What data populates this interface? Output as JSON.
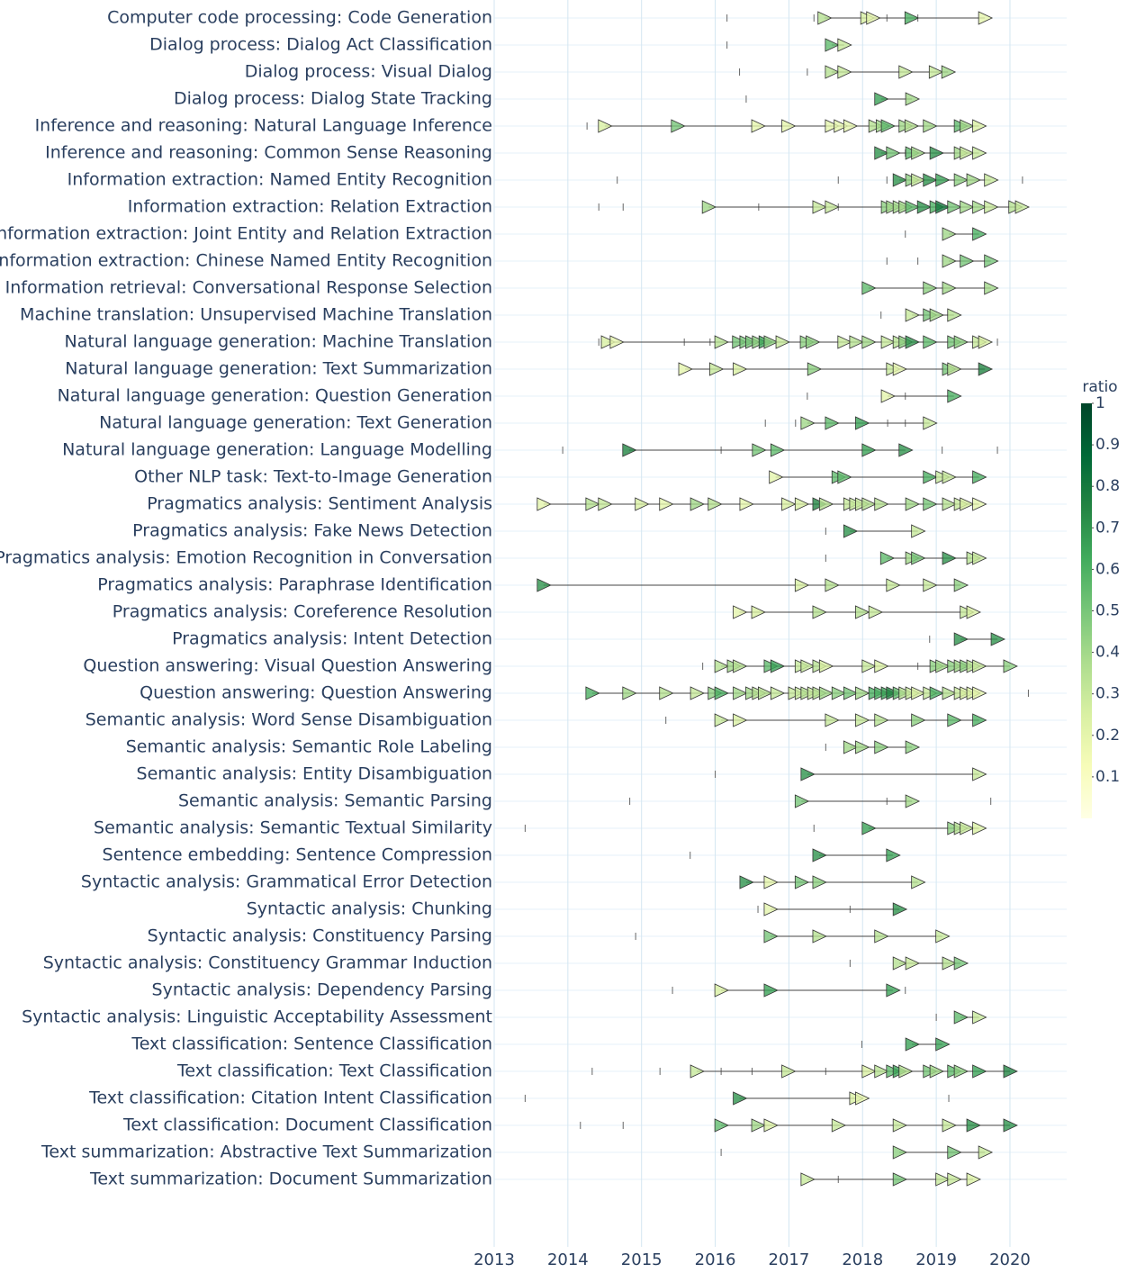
{
  "chart_data": {
    "type": "timeline",
    "xlim": [
      2013,
      2020.77
    ],
    "xticks": [
      2013,
      2014,
      2015,
      2016,
      2017,
      2018,
      2019,
      2020
    ],
    "colorbar": {
      "title": "ratio",
      "lim": [
        0,
        1
      ],
      "ticks": [
        0.1,
        0.2,
        0.3,
        0.4,
        0.5,
        0.6,
        0.7,
        0.8,
        0.9,
        1
      ],
      "colorscale": [
        [
          0,
          "#ffffe5"
        ],
        [
          0.125,
          "#f7fcb9"
        ],
        [
          0.25,
          "#d9f0a3"
        ],
        [
          0.375,
          "#addd8e"
        ],
        [
          0.5,
          "#78c679"
        ],
        [
          0.625,
          "#41ab5d"
        ],
        [
          0.75,
          "#238443"
        ],
        [
          0.875,
          "#006837"
        ],
        [
          1,
          "#004529"
        ]
      ]
    },
    "categories": [
      "Computer code processing: Code Generation",
      "Dialog process: Dialog Act Classification",
      "Dialog process: Visual Dialog",
      "Dialog process: Dialog State Tracking",
      "Inference and reasoning: Natural Language Inference",
      "Inference and reasoning: Common Sense Reasoning",
      "Information extraction: Named Entity Recognition",
      "Information extraction: Relation Extraction",
      "Information extraction: Joint Entity and Relation Extraction",
      "Information extraction: Chinese Named Entity Recognition",
      "Information retrieval: Conversational Response Selection",
      "Machine translation: Unsupervised Machine Translation",
      "Natural language generation: Machine Translation",
      "Natural language generation: Text Summarization",
      "Natural language generation: Question Generation",
      "Natural language generation: Text Generation",
      "Natural language generation: Language Modelling",
      "Other NLP task: Text-to-Image Generation",
      "Pragmatics analysis: Sentiment Analysis",
      "Pragmatics analysis: Fake News Detection",
      "Pragmatics analysis: Emotion Recognition in Conversation",
      "Pragmatics analysis: Paraphrase Identification",
      "Pragmatics analysis: Coreference Resolution",
      "Pragmatics analysis: Intent Detection",
      "Question answering: Visual Question Answering",
      "Question answering: Question Answering",
      "Semantic analysis: Word Sense Disambiguation",
      "Semantic analysis: Semantic Role Labeling",
      "Semantic analysis: Entity Disambiguation",
      "Semantic analysis: Semantic Parsing",
      "Semantic analysis: Semantic Textual Similarity",
      "Sentence embedding: Sentence Compression",
      "Syntactic analysis: Grammatical Error Detection",
      "Syntactic analysis: Chunking",
      "Syntactic analysis: Constituency Parsing",
      "Syntactic analysis: Constituency Grammar Induction",
      "Syntactic analysis: Dependency Parsing",
      "Syntactic analysis: Linguistic Acceptability Assessment",
      "Text classification: Sentence Classification",
      "Text classification: Text Classification",
      "Text classification: Citation Intent Classification",
      "Text classification: Document Classification",
      "Text summarization: Abstractive Text Summarization",
      "Text summarization: Document Summarization"
    ],
    "rows": [
      {
        "x": [
          2017.48,
          2018.06,
          2018.14,
          2018.66,
          2019.66
        ],
        "ratio": [
          0.35,
          0.25,
          0.2,
          0.6,
          0.2
        ],
        "other_x": [
          2016.16,
          2017.34,
          2018.33,
          2018.75
        ]
      },
      {
        "x": [
          2017.58,
          2017.75
        ],
        "ratio": [
          0.55,
          0.3
        ],
        "other_x": [
          2016.16
        ]
      },
      {
        "x": [
          2017.58,
          2017.75,
          2018.58,
          2018.99,
          2019.16
        ],
        "ratio": [
          0.35,
          0.3,
          0.3,
          0.3,
          0.4
        ],
        "other_x": [
          2016.33,
          2017.25
        ]
      },
      {
        "x": [
          2018.25,
          2018.67
        ],
        "ratio": [
          0.65,
          0.4
        ],
        "other_x": [
          2016.42
        ]
      },
      {
        "x": [
          2014.5,
          2015.49,
          2016.58,
          2016.99,
          2017.58,
          2017.7,
          2017.83,
          2018.17,
          2018.27,
          2018.34,
          2018.58,
          2018.66,
          2018.91,
          2019.33,
          2019.41,
          2019.58
        ],
        "ratio": [
          0.25,
          0.5,
          0.2,
          0.2,
          0.2,
          0.2,
          0.2,
          0.35,
          0.4,
          0.55,
          0.4,
          0.35,
          0.4,
          0.55,
          0.4,
          0.25
        ],
        "other_x": [
          2014.26
        ]
      },
      {
        "x": [
          2018.25,
          2018.41,
          2018.67,
          2018.75,
          2019.0,
          2019.33,
          2019.41,
          2019.58
        ],
        "ratio": [
          0.7,
          0.5,
          0.55,
          0.4,
          0.7,
          0.4,
          0.3,
          0.3
        ],
        "other_x": [
          2018.58
        ]
      },
      {
        "x": [
          2018.5,
          2018.67,
          2018.75,
          2018.91,
          2019.08,
          2019.33,
          2019.5,
          2019.74
        ],
        "ratio": [
          0.7,
          0.45,
          0.3,
          0.7,
          0.65,
          0.45,
          0.4,
          0.3
        ],
        "other_x": [
          2014.67,
          2017.67,
          2018.33,
          2020.17
        ]
      },
      {
        "x": [
          2015.91,
          2017.41,
          2017.58,
          2018.34,
          2018.41,
          2018.5,
          2018.58,
          2018.67,
          2018.83,
          2019.0,
          2019.08,
          2019.24,
          2019.41,
          2019.58,
          2019.74,
          2020.07,
          2020.16
        ],
        "ratio": [
          0.4,
          0.3,
          0.3,
          0.45,
          0.4,
          0.4,
          0.4,
          0.55,
          0.7,
          0.6,
          0.8,
          0.5,
          0.4,
          0.4,
          0.3,
          0.35,
          0.3
        ],
        "other_x": [
          2014.42,
          2014.75,
          2016.59,
          2017.67
        ]
      },
      {
        "x": [
          2019.17,
          2019.58
        ],
        "ratio": [
          0.4,
          0.6
        ],
        "other_x": [
          2018.58
        ]
      },
      {
        "x": [
          2019.17,
          2019.41,
          2019.74
        ],
        "ratio": [
          0.4,
          0.5,
          0.5
        ],
        "other_x": [
          2018.33,
          2018.75
        ]
      },
      {
        "x": [
          2018.08,
          2018.91,
          2019.17,
          2019.74
        ],
        "ratio": [
          0.55,
          0.45,
          0.4,
          0.4
        ],
        "other_x": []
      },
      {
        "x": [
          2018.67,
          2018.91,
          2019.0,
          2019.24
        ],
        "ratio": [
          0.3,
          0.5,
          0.4,
          0.35
        ],
        "other_x": [
          2018.25
        ]
      },
      {
        "x": [
          2014.54,
          2014.66,
          2016.08,
          2016.32,
          2016.42,
          2016.5,
          2016.59,
          2016.68,
          2016.75,
          2016.91,
          2017.24,
          2017.32,
          2017.75,
          2017.91,
          2018.08,
          2018.34,
          2018.5,
          2018.58,
          2018.67,
          2018.91,
          2019.24,
          2019.33,
          2019.58,
          2019.66
        ],
        "ratio": [
          0.25,
          0.2,
          0.35,
          0.5,
          0.5,
          0.5,
          0.45,
          0.65,
          0.45,
          0.3,
          0.45,
          0.45,
          0.3,
          0.35,
          0.4,
          0.3,
          0.35,
          0.45,
          0.7,
          0.55,
          0.5,
          0.45,
          0.3,
          0.25
        ],
        "other_x": [
          2014.42,
          2015.58,
          2015.93,
          2019.83
        ]
      },
      {
        "x": [
          2015.59,
          2016.01,
          2016.33,
          2017.34,
          2018.41,
          2018.5,
          2019.17,
          2019.24,
          2019.66
        ],
        "ratio": [
          0.2,
          0.3,
          0.25,
          0.45,
          0.3,
          0.2,
          0.5,
          0.35,
          0.75
        ],
        "other_x": []
      },
      {
        "x": [
          2018.34,
          2019.24
        ],
        "ratio": [
          0.2,
          0.6
        ],
        "other_x": [
          2017.25,
          2018.58
        ]
      },
      {
        "x": [
          2017.25,
          2017.58,
          2017.99,
          2018.91
        ],
        "ratio": [
          0.4,
          0.55,
          0.65,
          0.3
        ],
        "other_x": [
          2016.68,
          2017.09,
          2018.34,
          2018.58
        ]
      },
      {
        "x": [
          2014.83,
          2016.59,
          2016.84,
          2018.08,
          2018.58
        ],
        "ratio": [
          0.75,
          0.5,
          0.55,
          0.65,
          0.7
        ],
        "other_x": [
          2013.93,
          2016.08,
          2019.08,
          2019.83
        ]
      },
      {
        "x": [
          2016.82,
          2017.67,
          2017.75,
          2018.91,
          2019.08,
          2019.17,
          2019.58
        ],
        "ratio": [
          0.2,
          0.55,
          0.55,
          0.6,
          0.3,
          0.3,
          0.6
        ],
        "other_x": []
      },
      {
        "x": [
          2013.67,
          2014.33,
          2014.5,
          2015.0,
          2015.33,
          2015.75,
          2015.99,
          2016.42,
          2016.99,
          2017.17,
          2017.41,
          2017.5,
          2017.83,
          2017.91,
          2017.99,
          2018.08,
          2018.25,
          2018.67,
          2018.91,
          2019.17,
          2019.33,
          2019.41,
          2019.58
        ],
        "ratio": [
          0.2,
          0.35,
          0.3,
          0.25,
          0.2,
          0.4,
          0.35,
          0.2,
          0.25,
          0.25,
          0.75,
          0.35,
          0.3,
          0.3,
          0.3,
          0.35,
          0.35,
          0.4,
          0.5,
          0.35,
          0.3,
          0.25,
          0.2
        ],
        "other_x": []
      },
      {
        "x": [
          2017.83,
          2018.75
        ],
        "ratio": [
          0.7,
          0.3
        ],
        "other_x": [
          2017.5
        ]
      },
      {
        "x": [
          2018.33,
          2018.67,
          2018.75,
          2019.17,
          2019.5,
          2019.58
        ],
        "ratio": [
          0.55,
          0.4,
          0.5,
          0.7,
          0.35,
          0.3
        ],
        "other_x": [
          2017.5
        ]
      },
      {
        "x": [
          2013.67,
          2017.17,
          2017.58,
          2018.41,
          2018.91,
          2019.33
        ],
        "ratio": [
          0.7,
          0.25,
          0.35,
          0.3,
          0.3,
          0.45
        ],
        "other_x": []
      },
      {
        "x": [
          2016.33,
          2016.58,
          2017.41,
          2017.99,
          2018.17,
          2019.41,
          2019.5
        ],
        "ratio": [
          0.2,
          0.25,
          0.35,
          0.35,
          0.3,
          0.3,
          0.25
        ],
        "other_x": []
      },
      {
        "x": [
          2019.33,
          2019.83
        ],
        "ratio": [
          0.7,
          0.7
        ],
        "other_x": [
          2018.91
        ]
      },
      {
        "x": [
          2016.08,
          2016.25,
          2016.33,
          2016.75,
          2016.84,
          2017.17,
          2017.25,
          2017.41,
          2017.5,
          2018.08,
          2018.25,
          2019.0,
          2019.08,
          2019.24,
          2019.33,
          2019.41,
          2019.5,
          2019.58,
          2020.0
        ],
        "ratio": [
          0.35,
          0.4,
          0.35,
          0.55,
          0.65,
          0.3,
          0.3,
          0.35,
          0.25,
          0.3,
          0.25,
          0.45,
          0.4,
          0.45,
          0.4,
          0.45,
          0.35,
          0.3,
          0.45
        ],
        "other_x": [
          2015.83,
          2018.75
        ]
      },
      {
        "x": [
          2014.33,
          2014.83,
          2015.33,
          2015.75,
          2015.99,
          2016.08,
          2016.33,
          2016.5,
          2016.59,
          2016.67,
          2016.84,
          2017.08,
          2017.17,
          2017.25,
          2017.34,
          2017.41,
          2017.5,
          2017.67,
          2017.83,
          2017.99,
          2018.17,
          2018.25,
          2018.34,
          2018.41,
          2018.5,
          2018.58,
          2018.67,
          2018.75,
          2018.91,
          2019.0,
          2019.17,
          2019.33,
          2019.41,
          2019.5,
          2019.58
        ],
        "ratio": [
          0.6,
          0.4,
          0.35,
          0.3,
          0.45,
          0.6,
          0.4,
          0.4,
          0.35,
          0.35,
          0.3,
          0.3,
          0.3,
          0.35,
          0.3,
          0.35,
          0.4,
          0.45,
          0.5,
          0.4,
          0.6,
          0.6,
          0.65,
          0.75,
          0.55,
          0.35,
          0.3,
          0.25,
          0.3,
          0.6,
          0.35,
          0.3,
          0.25,
          0.25,
          0.2
        ],
        "other_x": [
          2020.25
        ]
      },
      {
        "x": [
          2016.08,
          2016.33,
          2017.58,
          2017.99,
          2018.25,
          2018.75,
          2019.24,
          2019.58
        ],
        "ratio": [
          0.3,
          0.25,
          0.3,
          0.3,
          0.35,
          0.45,
          0.55,
          0.6
        ],
        "other_x": [
          2015.33
        ]
      },
      {
        "x": [
          2017.83,
          2017.99,
          2018.25,
          2018.67
        ],
        "ratio": [
          0.4,
          0.4,
          0.45,
          0.45
        ],
        "other_x": [
          2017.5
        ]
      },
      {
        "x": [
          2017.25,
          2019.58
        ],
        "ratio": [
          0.7,
          0.3
        ],
        "other_x": [
          2016.0
        ]
      },
      {
        "x": [
          2017.17,
          2018.67
        ],
        "ratio": [
          0.5,
          0.4
        ],
        "other_x": [
          2014.84,
          2018.33,
          2019.74
        ]
      },
      {
        "x": [
          2018.08,
          2019.24,
          2019.33,
          2019.41,
          2019.58
        ],
        "ratio": [
          0.65,
          0.45,
          0.35,
          0.3,
          0.25
        ],
        "other_x": [
          2013.42,
          2017.34
        ]
      },
      {
        "x": [
          2017.41,
          2018.41
        ],
        "ratio": [
          0.7,
          0.65
        ],
        "other_x": [
          2015.66
        ]
      },
      {
        "x": [
          2016.42,
          2016.75,
          2017.17,
          2017.41,
          2018.75
        ],
        "ratio": [
          0.7,
          0.2,
          0.5,
          0.45,
          0.35
        ],
        "other_x": []
      },
      {
        "x": [
          2016.75,
          2018.5
        ],
        "ratio": [
          0.2,
          0.7
        ],
        "other_x": [
          2016.58,
          2017.83
        ]
      },
      {
        "x": [
          2016.75,
          2017.41,
          2018.25,
          2019.08
        ],
        "ratio": [
          0.5,
          0.35,
          0.35,
          0.3
        ],
        "other_x": [
          2014.92
        ]
      },
      {
        "x": [
          2018.5,
          2018.67,
          2019.17,
          2019.33
        ],
        "ratio": [
          0.35,
          0.3,
          0.35,
          0.5
        ],
        "other_x": [
          2017.83
        ]
      },
      {
        "x": [
          2016.08,
          2016.75,
          2018.41
        ],
        "ratio": [
          0.25,
          0.65,
          0.65
        ],
        "other_x": [
          2015.42,
          2018.58
        ]
      },
      {
        "x": [
          2019.33,
          2019.58
        ],
        "ratio": [
          0.55,
          0.3
        ],
        "other_x": [
          2019.0
        ]
      },
      {
        "x": [
          2018.67,
          2019.08
        ],
        "ratio": [
          0.65,
          0.65
        ],
        "other_x": [
          2017.99
        ]
      },
      {
        "x": [
          2015.75,
          2016.99,
          2018.08,
          2018.25,
          2018.41,
          2018.5,
          2018.58,
          2018.91,
          2019.0,
          2019.24,
          2019.33,
          2019.58,
          2020.0
        ],
        "ratio": [
          0.3,
          0.3,
          0.25,
          0.35,
          0.55,
          0.65,
          0.35,
          0.5,
          0.4,
          0.55,
          0.45,
          0.65,
          0.75
        ],
        "other_x": [
          2014.33,
          2015.25,
          2016.08,
          2016.5,
          2017.5
        ]
      },
      {
        "x": [
          2016.33,
          2017.91,
          2017.99
        ],
        "ratio": [
          0.7,
          0.25,
          0.2
        ],
        "other_x": [
          2013.42,
          2019.17
        ]
      },
      {
        "x": [
          2016.08,
          2016.58,
          2016.75,
          2017.67,
          2018.5,
          2019.17,
          2019.5,
          2020.0
        ],
        "ratio": [
          0.55,
          0.4,
          0.25,
          0.3,
          0.3,
          0.3,
          0.7,
          0.7
        ],
        "other_x": [
          2014.17,
          2014.75
        ]
      },
      {
        "x": [
          2018.5,
          2019.24,
          2019.66
        ],
        "ratio": [
          0.45,
          0.5,
          0.3
        ],
        "other_x": [
          2016.08
        ]
      },
      {
        "x": [
          2017.25,
          2018.5,
          2019.08,
          2019.24,
          2019.5
        ],
        "ratio": [
          0.3,
          0.5,
          0.3,
          0.3,
          0.25
        ],
        "other_x": [
          2017.67
        ]
      }
    ]
  }
}
